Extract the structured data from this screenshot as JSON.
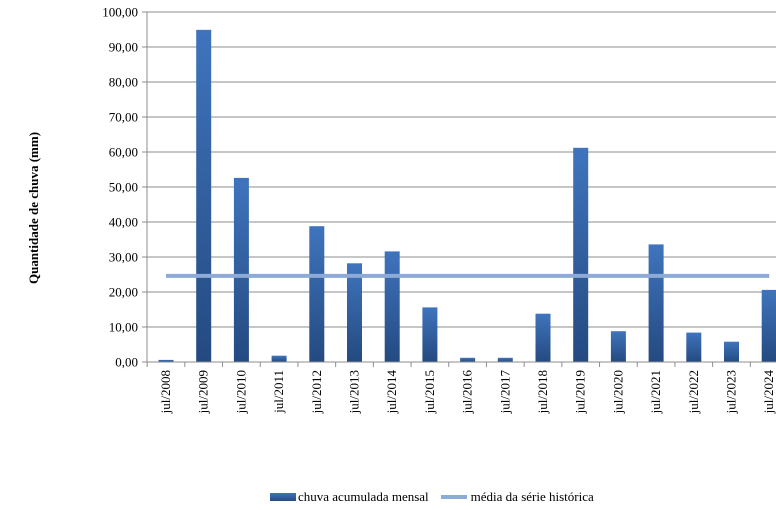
{
  "chart_data": {
    "type": "bar",
    "ylabel": "Quantidade de chuva (mm)",
    "xlabel": "",
    "title": "",
    "ylim": [
      0,
      100
    ],
    "yticks": [
      "0,00",
      "10,00",
      "20,00",
      "30,00",
      "40,00",
      "50,00",
      "60,00",
      "70,00",
      "80,00",
      "90,00",
      "100,00"
    ],
    "categories": [
      "jul/2008",
      "jul/2009",
      "jul/2010",
      "jul/2011",
      "jul/2012",
      "jul/2013",
      "jul/2014",
      "jul/2015",
      "jul/2016",
      "jul/2017",
      "jul/2018",
      "jul/2019",
      "jul/2020",
      "jul/2021",
      "jul/2022",
      "jul/2023",
      "jul/2024"
    ],
    "series": [
      {
        "name": "chuva acumulada mensal",
        "type": "bar",
        "color": "#2f5d9e",
        "values": [
          0.6,
          94.9,
          52.6,
          1.8,
          38.8,
          28.2,
          31.6,
          15.6,
          1.2,
          1.2,
          13.8,
          61.2,
          8.8,
          33.6,
          8.4,
          5.8,
          20.6
        ]
      },
      {
        "name": "média da série histórica",
        "type": "line",
        "color": "#8eaad6",
        "values": [
          24.6,
          24.6,
          24.6,
          24.6,
          24.6,
          24.6,
          24.6,
          24.6,
          24.6,
          24.6,
          24.6,
          24.6,
          24.6,
          24.6,
          24.6,
          24.6,
          24.6
        ]
      }
    ],
    "grid": true,
    "legend": "bottom"
  }
}
